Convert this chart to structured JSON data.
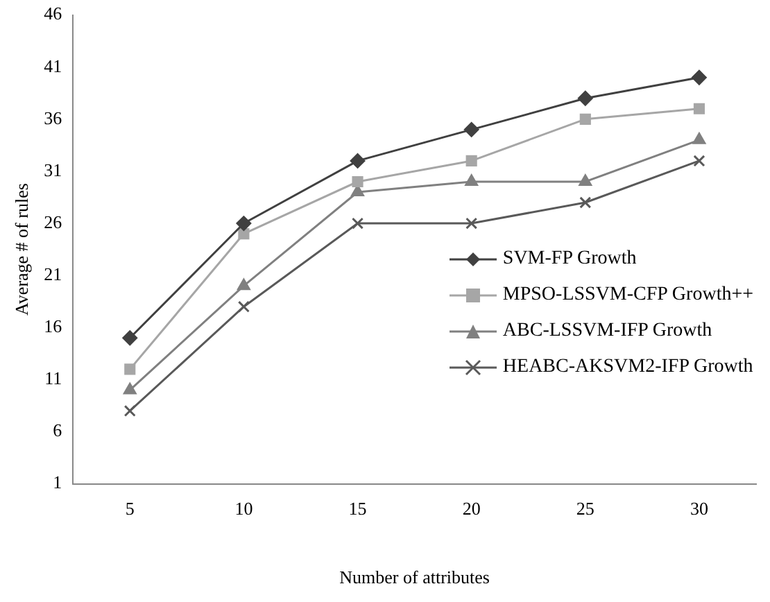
{
  "chart_data": {
    "type": "line",
    "xlabel": "Number of attributes",
    "ylabel": "Average # of rules",
    "categories": [
      "5",
      "10",
      "15",
      "20",
      "25",
      "30"
    ],
    "ylim": [
      1,
      46
    ],
    "yticks": [
      1,
      6,
      11,
      16,
      21,
      26,
      31,
      36,
      41,
      46
    ],
    "grid": false,
    "legend": "right",
    "series": [
      {
        "name": "SVM-FP Growth",
        "color": "#404040",
        "marker": "diamond",
        "values": [
          15,
          26,
          32,
          35,
          38,
          40
        ]
      },
      {
        "name": "MPSO-LSSVM-CFP Growth++",
        "color": "#a6a6a6",
        "marker": "square",
        "values": [
          12,
          25,
          30,
          32,
          36,
          37
        ]
      },
      {
        "name": "ABC-LSSVM-IFP Growth",
        "color": "#808080",
        "marker": "triangle",
        "values": [
          10,
          20,
          29,
          30,
          30,
          34
        ]
      },
      {
        "name": "HEABC-AKSVM2-IFP Growth",
        "color": "#595959",
        "marker": "cross",
        "values": [
          8,
          18,
          26,
          26,
          28,
          32
        ]
      }
    ]
  }
}
